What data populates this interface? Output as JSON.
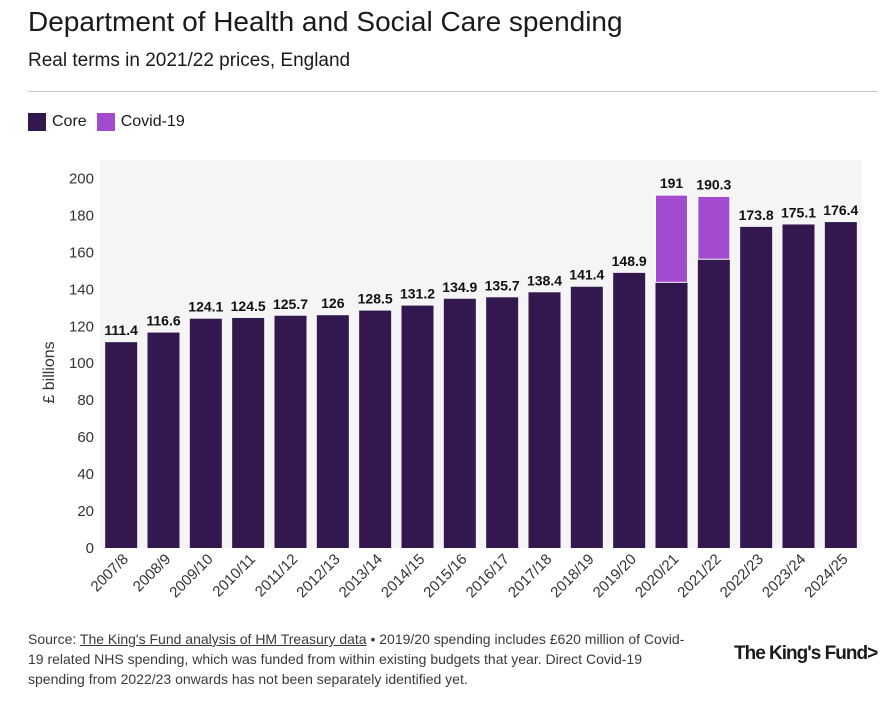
{
  "header": {
    "title": "Department of Health and Social Care spending",
    "subtitle": "Real terms in 2021/22 prices, England"
  },
  "legend": {
    "items": [
      {
        "label": "Core",
        "color": "#32184f"
      },
      {
        "label": "Covid-19",
        "color": "#a34bce"
      }
    ]
  },
  "chart_data": {
    "type": "bar",
    "stacked": true,
    "ylabel": "£ billions",
    "ylim": [
      0,
      210
    ],
    "yticks": [
      0,
      20,
      40,
      60,
      80,
      100,
      120,
      140,
      160,
      180,
      200
    ],
    "categories": [
      "2007/8",
      "2008/9",
      "2009/10",
      "2010/11",
      "2011/12",
      "2012/13",
      "2013/14",
      "2014/15",
      "2015/16",
      "2016/17",
      "2017/18",
      "2018/19",
      "2019/20",
      "2020/21",
      "2021/22",
      "2022/23",
      "2023/24",
      "2024/25"
    ],
    "series": [
      {
        "name": "Core",
        "color": "#32184f",
        "values": [
          111.4,
          116.6,
          124.1,
          124.5,
          125.7,
          126,
          128.5,
          131.2,
          134.9,
          135.7,
          138.4,
          141.4,
          148.9,
          143.8,
          156.3,
          173.8,
          175.1,
          176.4
        ]
      },
      {
        "name": "Covid-19",
        "color": "#a34bce",
        "values": [
          0,
          0,
          0,
          0,
          0,
          0,
          0,
          0,
          0,
          0,
          0,
          0,
          0,
          47.2,
          34.0,
          0,
          0,
          0
        ]
      }
    ],
    "totals": [
      "111.4",
      "116.6",
      "124.1",
      "124.5",
      "125.7",
      "126",
      "128.5",
      "131.2",
      "134.9",
      "135.7",
      "138.4",
      "141.4",
      "148.9",
      "191",
      "190.3",
      "173.8",
      "175.1",
      "176.4"
    ]
  },
  "footer": {
    "source_prefix": "Source: ",
    "source_link": "The King's Fund analysis of HM Treasury data",
    "source_note": " • 2019/20 spending includes £620 million of Covid-19 related NHS spending, which was funded from within existing budgets that year. Direct Covid-19 spending from 2022/23 onwards has not been separately identified yet.",
    "logo": "The King's Fund",
    "logo_chevron": ">"
  }
}
